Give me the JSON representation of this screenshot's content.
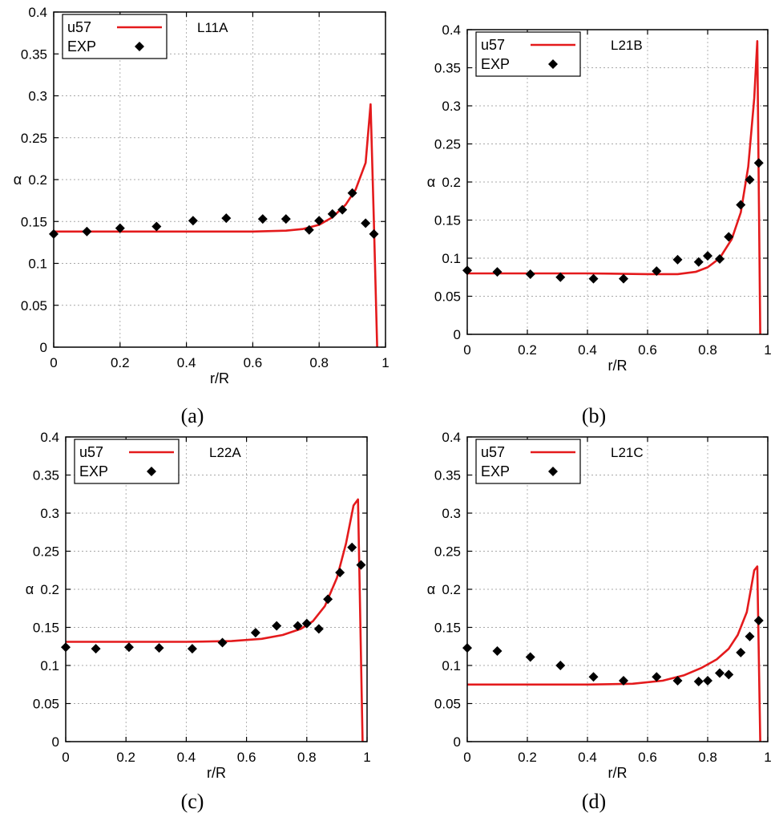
{
  "colors": {
    "model": "#e41a1c",
    "exp": "#000000"
  },
  "chart_data": [
    {
      "type": "line",
      "panel": "(a)",
      "case_label": "L11A",
      "xlabel": "r/R",
      "ylabel": "α",
      "xlim": [
        0,
        1.0
      ],
      "ylim": [
        0,
        0.4
      ],
      "x_ticks": [
        "0",
        "0.2",
        "0.4",
        "0.6",
        "0.8",
        "1"
      ],
      "y_ticks": [
        "0",
        "0.05",
        "0.1",
        "0.15",
        "0.2",
        "0.25",
        "0.3",
        "0.35",
        "0.4"
      ],
      "grid": true,
      "legend": "top-left",
      "series": [
        {
          "name": "u57",
          "style": "line",
          "x": [
            0,
            0.2,
            0.4,
            0.6,
            0.7,
            0.75,
            0.8,
            0.84,
            0.88,
            0.91,
            0.94,
            0.955,
            0.965,
            0.975
          ],
          "y": [
            0.138,
            0.138,
            0.138,
            0.138,
            0.139,
            0.141,
            0.146,
            0.155,
            0.17,
            0.188,
            0.22,
            0.29,
            0.15,
            0
          ]
        },
        {
          "name": "EXP",
          "style": "markers",
          "x": [
            0,
            0.1,
            0.2,
            0.31,
            0.42,
            0.52,
            0.63,
            0.7,
            0.77,
            0.8,
            0.84,
            0.87,
            0.9,
            0.94,
            0.965
          ],
          "y": [
            0.135,
            0.138,
            0.142,
            0.144,
            0.151,
            0.154,
            0.153,
            0.153,
            0.14,
            0.151,
            0.159,
            0.164,
            0.184,
            0.148,
            0.135
          ]
        }
      ]
    },
    {
      "type": "line",
      "panel": "(b)",
      "case_label": "L21B",
      "xlabel": "r/R",
      "ylabel": "α",
      "xlim": [
        0,
        1.0
      ],
      "ylim": [
        0,
        0.4
      ],
      "x_ticks": [
        "0",
        "0.2",
        "0.4",
        "0.6",
        "0.8",
        "1"
      ],
      "y_ticks": [
        "0",
        "0.05",
        "0.1",
        "0.15",
        "0.2",
        "0.25",
        "0.3",
        "0.35",
        "0.4"
      ],
      "grid": true,
      "legend": "top-left",
      "series": [
        {
          "name": "u57",
          "style": "line",
          "x": [
            0,
            0.2,
            0.4,
            0.6,
            0.7,
            0.76,
            0.8,
            0.84,
            0.88,
            0.91,
            0.935,
            0.955,
            0.965,
            0.975
          ],
          "y": [
            0.08,
            0.08,
            0.08,
            0.079,
            0.079,
            0.082,
            0.088,
            0.1,
            0.125,
            0.16,
            0.22,
            0.31,
            0.385,
            0
          ]
        },
        {
          "name": "EXP",
          "style": "markers",
          "x": [
            0,
            0.1,
            0.21,
            0.31,
            0.42,
            0.52,
            0.63,
            0.7,
            0.77,
            0.8,
            0.84,
            0.87,
            0.91,
            0.94,
            0.97
          ],
          "y": [
            0.084,
            0.082,
            0.079,
            0.075,
            0.073,
            0.073,
            0.083,
            0.098,
            0.095,
            0.103,
            0.099,
            0.128,
            0.17,
            0.203,
            0.225
          ]
        }
      ]
    },
    {
      "type": "line",
      "panel": "(c)",
      "case_label": "L22A",
      "xlabel": "r/R",
      "ylabel": "α",
      "xlim": [
        0,
        1.0
      ],
      "ylim": [
        0,
        0.4
      ],
      "x_ticks": [
        "0",
        "0.2",
        "0.4",
        "0.6",
        "0.8",
        "1"
      ],
      "y_ticks": [
        "0",
        "0.05",
        "0.1",
        "0.15",
        "0.2",
        "0.25",
        "0.3",
        "0.35",
        "0.4"
      ],
      "grid": true,
      "legend": "top-left",
      "series": [
        {
          "name": "u57",
          "style": "line",
          "x": [
            0,
            0.2,
            0.4,
            0.55,
            0.65,
            0.72,
            0.78,
            0.82,
            0.86,
            0.9,
            0.93,
            0.955,
            0.97,
            0.985
          ],
          "y": [
            0.131,
            0.131,
            0.131,
            0.132,
            0.135,
            0.14,
            0.148,
            0.158,
            0.178,
            0.215,
            0.26,
            0.31,
            0.318,
            0
          ]
        },
        {
          "name": "EXP",
          "style": "markers",
          "x": [
            0,
            0.1,
            0.21,
            0.31,
            0.42,
            0.52,
            0.63,
            0.7,
            0.77,
            0.8,
            0.84,
            0.87,
            0.91,
            0.95,
            0.98
          ],
          "y": [
            0.124,
            0.122,
            0.124,
            0.123,
            0.122,
            0.13,
            0.143,
            0.152,
            0.152,
            0.155,
            0.148,
            0.187,
            0.222,
            0.255,
            0.232
          ]
        }
      ]
    },
    {
      "type": "line",
      "panel": "(d)",
      "case_label": "L21C",
      "xlabel": "r/R",
      "ylabel": "α",
      "xlim": [
        0,
        1.0
      ],
      "ylim": [
        0,
        0.4
      ],
      "x_ticks": [
        "0",
        "0.2",
        "0.4",
        "0.6",
        "0.8",
        "1"
      ],
      "y_ticks": [
        "0",
        "0.05",
        "0.1",
        "0.15",
        "0.2",
        "0.25",
        "0.3",
        "0.35",
        "0.4"
      ],
      "grid": true,
      "legend": "top-left",
      "series": [
        {
          "name": "u57",
          "style": "line",
          "x": [
            0,
            0.2,
            0.4,
            0.55,
            0.65,
            0.72,
            0.78,
            0.83,
            0.87,
            0.9,
            0.93,
            0.955,
            0.965,
            0.975
          ],
          "y": [
            0.075,
            0.075,
            0.075,
            0.076,
            0.08,
            0.087,
            0.097,
            0.108,
            0.122,
            0.14,
            0.17,
            0.225,
            0.23,
            0
          ]
        },
        {
          "name": "EXP",
          "style": "markers",
          "x": [
            0,
            0.1,
            0.21,
            0.31,
            0.42,
            0.52,
            0.63,
            0.7,
            0.77,
            0.8,
            0.84,
            0.87,
            0.91,
            0.94,
            0.97
          ],
          "y": [
            0.123,
            0.119,
            0.111,
            0.1,
            0.085,
            0.08,
            0.085,
            0.08,
            0.079,
            0.08,
            0.09,
            0.088,
            0.117,
            0.138,
            0.159
          ]
        }
      ]
    }
  ]
}
